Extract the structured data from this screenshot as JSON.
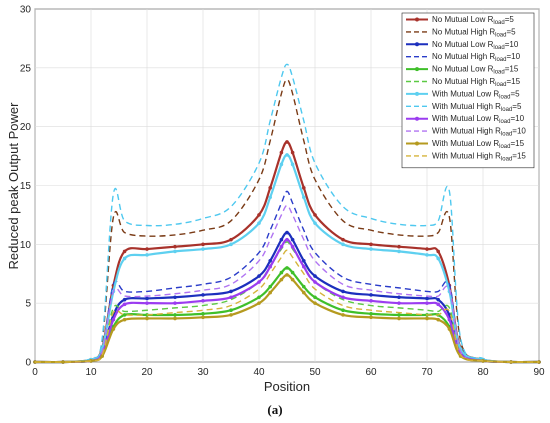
{
  "caption": "(a)",
  "chart_data": {
    "type": "line",
    "title": "",
    "xlabel": "Position",
    "ylabel": "Reduced peak Output Power",
    "xlim": [
      0,
      90
    ],
    "ylim": [
      0,
      30
    ],
    "xticks": [
      "0",
      "10",
      "20",
      "30",
      "40",
      "50",
      "60",
      "70",
      "80",
      "90"
    ],
    "yticks": [
      "0",
      "5",
      "10",
      "15",
      "20",
      "25",
      "30"
    ],
    "grid": true,
    "legend_position": "top-right",
    "x": [
      0,
      5,
      10,
      12,
      14,
      16,
      20,
      25,
      30,
      35,
      40,
      42,
      44,
      45,
      46,
      48,
      50,
      55,
      60,
      65,
      70,
      72,
      74,
      76,
      80,
      85,
      90
    ],
    "series": [
      {
        "label_main": "No Mutual Low R",
        "label_sub": "load",
        "label_tail": "=5",
        "color": "#a8322b",
        "style": "solid-marker",
        "values": [
          0,
          0,
          0.2,
          1.2,
          6.5,
          9.4,
          9.6,
          9.8,
          10.0,
          10.4,
          12.5,
          14.8,
          17.8,
          18.7,
          17.8,
          14.8,
          12.5,
          10.4,
          10.0,
          9.8,
          9.6,
          9.4,
          6.5,
          1.2,
          0.2,
          0,
          0
        ]
      },
      {
        "label_main": "No Mutual High R",
        "label_sub": "load",
        "label_tail": "=5",
        "color": "#7a3b16",
        "style": "dashed",
        "values": [
          0,
          0,
          0.2,
          1.8,
          12.3,
          11.0,
          10.7,
          10.8,
          11.2,
          12.0,
          15.5,
          18.8,
          22.8,
          24.0,
          22.8,
          18.8,
          15.5,
          12.0,
          11.2,
          10.8,
          10.7,
          11.0,
          12.3,
          1.8,
          0.2,
          0,
          0
        ]
      },
      {
        "label_main": "No Mutual Low R",
        "label_sub": "load",
        "label_tail": "=10",
        "color": "#1c2fbd",
        "style": "solid-marker",
        "values": [
          0,
          0,
          0.1,
          0.8,
          4.0,
          5.3,
          5.4,
          5.5,
          5.7,
          6.0,
          7.3,
          8.6,
          10.4,
          11.0,
          10.4,
          8.6,
          7.3,
          6.0,
          5.7,
          5.5,
          5.4,
          5.3,
          4.0,
          0.8,
          0.1,
          0,
          0
        ]
      },
      {
        "label_main": "No Mutual High R",
        "label_sub": "load",
        "label_tail": "=10",
        "color": "#2a3cc9",
        "style": "dashed",
        "values": [
          0,
          0,
          0.1,
          1.0,
          6.6,
          6.0,
          6.0,
          6.3,
          6.6,
          7.2,
          9.3,
          11.2,
          13.5,
          14.5,
          13.5,
          11.2,
          9.3,
          7.2,
          6.6,
          6.3,
          6.0,
          6.0,
          6.6,
          1.0,
          0.1,
          0,
          0
        ]
      },
      {
        "label_main": "No Mutual Low R",
        "label_sub": "load",
        "label_tail": "=15",
        "color": "#3fbf2a",
        "style": "solid-marker",
        "values": [
          0,
          0,
          0.1,
          0.6,
          3.0,
          4.0,
          4.0,
          4.0,
          4.1,
          4.4,
          5.5,
          6.4,
          7.6,
          8.0,
          7.6,
          6.4,
          5.5,
          4.4,
          4.1,
          4.0,
          4.0,
          4.0,
          3.0,
          0.6,
          0.1,
          0,
          0
        ]
      },
      {
        "label_main": "No Mutual High R",
        "label_sub": "load",
        "label_tail": "=15",
        "color": "#5cc943",
        "style": "dashed",
        "values": [
          0,
          0,
          0.1,
          0.7,
          4.6,
          4.3,
          4.4,
          4.6,
          4.8,
          5.3,
          6.8,
          8.2,
          9.6,
          10.2,
          9.6,
          8.2,
          6.8,
          5.3,
          4.8,
          4.6,
          4.4,
          4.3,
          4.6,
          0.7,
          0.1,
          0,
          0
        ]
      },
      {
        "label_main": "With Mutual Low R",
        "label_sub": "load",
        "label_tail": "=5",
        "color": "#5ed0f0",
        "style": "solid-marker",
        "values": [
          0,
          0,
          0.2,
          1.1,
          6.0,
          8.8,
          9.1,
          9.4,
          9.6,
          10.0,
          11.8,
          14.0,
          16.8,
          17.6,
          16.8,
          14.0,
          11.8,
          10.0,
          9.6,
          9.4,
          9.1,
          8.8,
          6.0,
          1.1,
          0.2,
          0,
          0
        ]
      },
      {
        "label_main": "With Mutual High R",
        "label_sub": "load",
        "label_tail": "=5",
        "color": "#4ec8ef",
        "style": "dashed",
        "values": [
          0,
          0,
          0.3,
          2.0,
          14.3,
          12.0,
          11.6,
          11.7,
          12.2,
          13.2,
          16.9,
          20.5,
          24.2,
          25.3,
          24.2,
          20.5,
          16.9,
          13.2,
          12.2,
          11.7,
          11.6,
          12.0,
          14.5,
          2.0,
          0.3,
          0,
          0
        ]
      },
      {
        "label_main": "With Mutual Low R",
        "label_sub": "load",
        "label_tail": "=10",
        "color": "#9b3cf0",
        "style": "solid-marker",
        "values": [
          0,
          0,
          0.1,
          0.7,
          3.6,
          4.9,
          5.0,
          5.0,
          5.2,
          5.5,
          6.8,
          8.1,
          9.8,
          10.4,
          9.8,
          8.1,
          6.8,
          5.5,
          5.2,
          5.0,
          5.0,
          4.9,
          3.6,
          0.7,
          0.1,
          0,
          0
        ]
      },
      {
        "label_main": "With Mutual High R",
        "label_sub": "load",
        "label_tail": "=10",
        "color": "#b074f2",
        "style": "dashed",
        "values": [
          0,
          0,
          0.1,
          0.9,
          6.0,
          5.6,
          5.6,
          5.8,
          6.1,
          6.6,
          8.6,
          10.4,
          12.5,
          13.3,
          12.5,
          10.4,
          8.6,
          6.6,
          6.1,
          5.8,
          5.6,
          5.6,
          6.2,
          0.9,
          0.1,
          0,
          0
        ]
      },
      {
        "label_main": "With Mutual Low R",
        "label_sub": "load",
        "label_tail": "=15",
        "color": "#b59a1f",
        "style": "solid-marker",
        "values": [
          0,
          0,
          0.1,
          0.5,
          2.8,
          3.6,
          3.7,
          3.7,
          3.8,
          4.0,
          5.0,
          5.9,
          7.0,
          7.4,
          7.0,
          5.9,
          5.0,
          4.0,
          3.8,
          3.7,
          3.7,
          3.6,
          2.8,
          0.5,
          0.1,
          0,
          0
        ]
      },
      {
        "label_main": "With Mutual High R",
        "label_sub": "load",
        "label_tail": "=15",
        "color": "#d5b33a",
        "style": "dashed",
        "values": [
          0,
          0,
          0.1,
          0.6,
          4.2,
          4.0,
          4.0,
          4.2,
          4.4,
          4.8,
          6.2,
          7.5,
          8.9,
          9.5,
          8.9,
          7.5,
          6.2,
          4.8,
          4.4,
          4.2,
          4.0,
          4.0,
          4.3,
          0.6,
          0.1,
          0,
          0
        ]
      }
    ]
  }
}
